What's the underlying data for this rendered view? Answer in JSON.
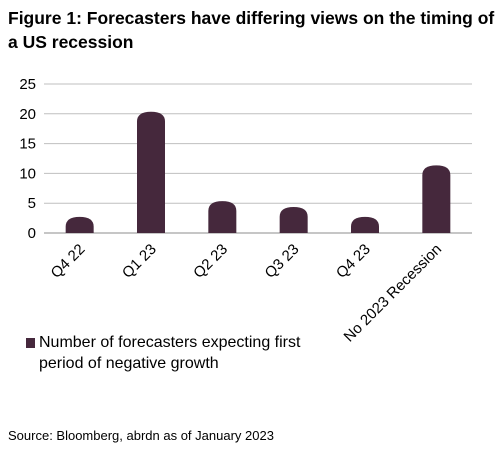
{
  "title": "Figure 1: Forecasters have differing views on the timing of a US recession",
  "source": "Source: Bloomberg, abrdn as of January 2023",
  "colors": {
    "bar": "#45283c",
    "grid": "#bfbfbf"
  },
  "chart_data": {
    "type": "bar",
    "title": "Figure 1: Forecasters have differing views on the timing of a US recession",
    "categories": [
      "Q4 22",
      "Q1 23",
      "Q2 23",
      "Q3 23",
      "Q4 23",
      "No 2023 Recession"
    ],
    "series": [
      {
        "name": "Number of forecasters expecting first period of negative growth",
        "values": [
          1,
          20,
          5,
          4,
          1,
          11
        ]
      }
    ],
    "xlabel": "",
    "ylabel": "",
    "ylim": [
      0,
      25
    ],
    "yticks": [
      0,
      5,
      10,
      15,
      20,
      25
    ],
    "grid": true,
    "legend_position": "bottom-left"
  }
}
